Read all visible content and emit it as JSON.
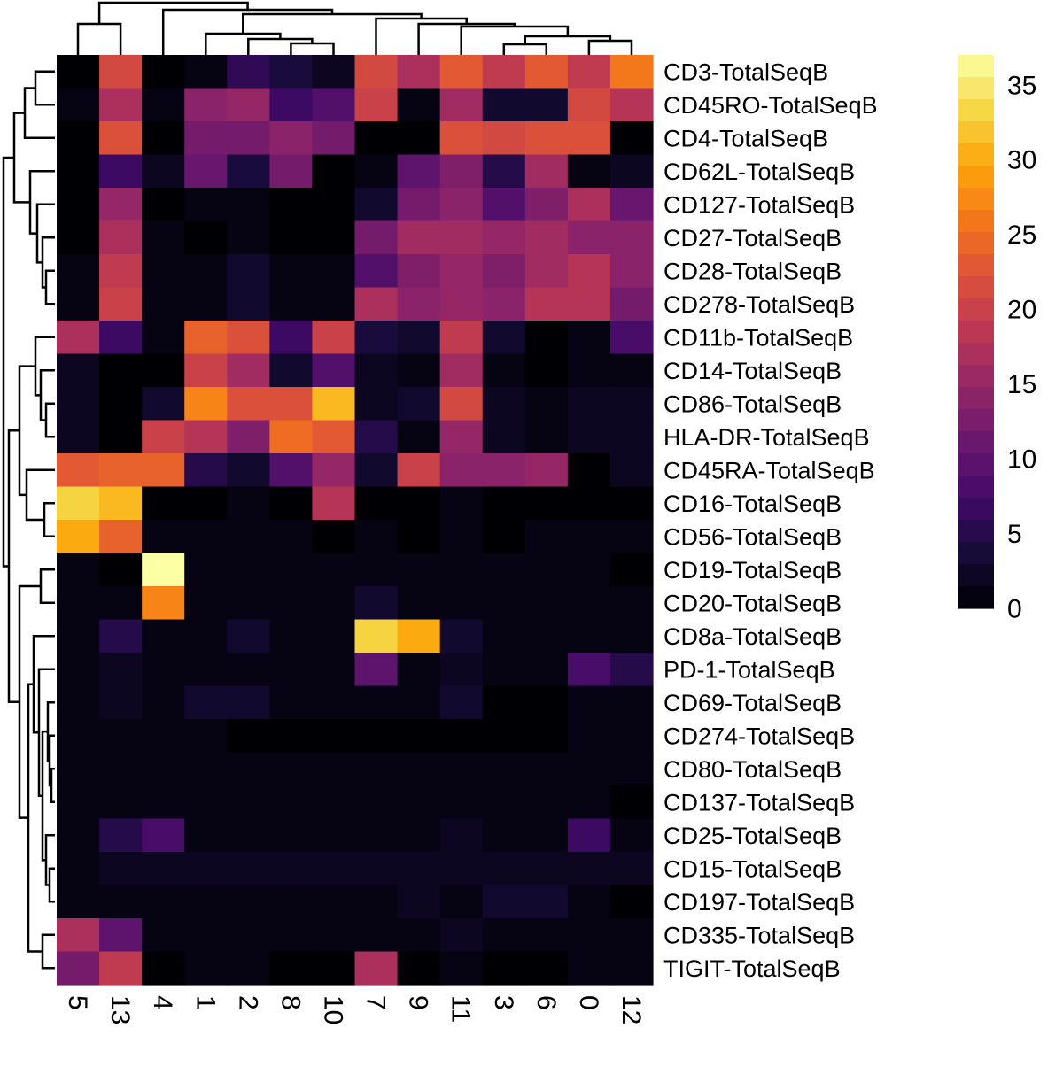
{
  "chart_data": {
    "type": "heatmap",
    "title": "",
    "xlabel": "",
    "ylabel": "",
    "columns": [
      "5",
      "13",
      "4",
      "1",
      "2",
      "8",
      "10",
      "7",
      "9",
      "11",
      "3",
      "6",
      "0",
      "12"
    ],
    "rows": [
      "CD3-TotalSeqB",
      "CD45RO-TotalSeqB",
      "CD4-TotalSeqB",
      "CD62L-TotalSeqB",
      "CD127-TotalSeqB",
      "CD27-TotalSeqB",
      "CD28-TotalSeqB",
      "CD278-TotalSeqB",
      "CD11b-TotalSeqB",
      "CD14-TotalSeqB",
      "CD86-TotalSeqB",
      "HLA-DR-TotalSeqB",
      "CD45RA-TotalSeqB",
      "CD16-TotalSeqB",
      "CD56-TotalSeqB",
      "CD19-TotalSeqB",
      "CD20-TotalSeqB",
      "CD8a-TotalSeqB",
      "PD-1-TotalSeqB",
      "CD69-TotalSeqB",
      "CD274-TotalSeqB",
      "CD80-TotalSeqB",
      "CD137-TotalSeqB",
      "CD25-TotalSeqB",
      "CD15-TotalSeqB",
      "CD197-TotalSeqB",
      "CD335-TotalSeqB",
      "TIGIT-TotalSeqB"
    ],
    "values": [
      [
        0,
        21,
        0,
        1,
        6,
        4,
        2,
        21,
        17,
        23,
        19,
        23,
        19,
        26
      ],
      [
        1,
        17,
        1,
        14,
        15,
        7,
        9,
        20,
        1,
        16,
        3,
        3,
        21,
        18
      ],
      [
        0,
        22,
        0,
        12,
        12,
        14,
        12,
        0,
        0,
        22,
        21,
        22,
        22,
        0
      ],
      [
        0,
        7,
        2,
        11,
        4,
        12,
        0,
        1,
        10,
        13,
        5,
        16,
        1,
        2
      ],
      [
        0,
        15,
        0,
        1,
        1,
        0,
        0,
        3,
        12,
        14,
        9,
        13,
        17,
        11
      ],
      [
        0,
        17,
        1,
        0,
        1,
        0,
        0,
        12,
        16,
        16,
        15,
        16,
        14,
        14
      ],
      [
        1,
        19,
        1,
        1,
        3,
        1,
        1,
        9,
        13,
        15,
        13,
        16,
        18,
        14
      ],
      [
        1,
        20,
        1,
        1,
        3,
        1,
        1,
        17,
        14,
        15,
        14,
        18,
        18,
        12
      ],
      [
        17,
        7,
        1,
        24,
        22,
        7,
        20,
        4,
        3,
        19,
        3,
        0,
        1,
        8
      ],
      [
        2,
        0,
        0,
        20,
        16,
        3,
        9,
        2,
        1,
        16,
        1,
        0,
        1,
        1
      ],
      [
        2,
        0,
        3,
        27,
        22,
        22,
        31,
        2,
        3,
        21,
        2,
        1,
        2,
        2
      ],
      [
        2,
        0,
        20,
        18,
        13,
        25,
        23,
        5,
        1,
        15,
        2,
        1,
        2,
        2
      ],
      [
        23,
        24,
        24,
        5,
        3,
        9,
        15,
        3,
        20,
        14,
        14,
        15,
        0,
        2
      ],
      [
        33,
        31,
        0,
        0,
        1,
        0,
        18,
        0,
        0,
        1,
        0,
        0,
        0,
        0
      ],
      [
        30,
        24,
        1,
        1,
        1,
        1,
        0,
        1,
        0,
        1,
        0,
        1,
        1,
        1
      ],
      [
        1,
        0,
        37,
        1,
        1,
        1,
        1,
        1,
        1,
        1,
        1,
        1,
        1,
        0
      ],
      [
        1,
        1,
        27,
        1,
        1,
        1,
        1,
        3,
        1,
        1,
        1,
        1,
        1,
        1
      ],
      [
        1,
        5,
        1,
        1,
        3,
        1,
        1,
        33,
        30,
        3,
        1,
        1,
        1,
        1
      ],
      [
        1,
        2,
        1,
        1,
        1,
        1,
        1,
        10,
        1,
        2,
        1,
        1,
        8,
        5
      ],
      [
        1,
        2,
        1,
        3,
        3,
        1,
        1,
        1,
        1,
        3,
        0,
        0,
        1,
        1
      ],
      [
        1,
        1,
        1,
        1,
        0,
        0,
        0,
        0,
        0,
        0,
        0,
        0,
        1,
        1
      ],
      [
        1,
        1,
        1,
        1,
        1,
        1,
        1,
        1,
        1,
        1,
        1,
        1,
        1,
        1
      ],
      [
        1,
        1,
        1,
        1,
        1,
        1,
        1,
        1,
        1,
        1,
        1,
        1,
        1,
        0
      ],
      [
        1,
        5,
        8,
        1,
        1,
        1,
        1,
        1,
        1,
        2,
        1,
        1,
        7,
        1
      ],
      [
        1,
        2,
        2,
        2,
        2,
        2,
        2,
        2,
        2,
        2,
        2,
        2,
        2,
        2
      ],
      [
        1,
        1,
        1,
        1,
        1,
        1,
        1,
        1,
        2,
        1,
        3,
        3,
        1,
        0
      ],
      [
        17,
        10,
        1,
        1,
        1,
        1,
        1,
        1,
        1,
        2,
        1,
        1,
        1,
        1
      ],
      [
        12,
        19,
        0,
        1,
        1,
        0,
        0,
        17,
        0,
        1,
        0,
        0,
        1,
        1
      ]
    ],
    "colorscale": "inferno",
    "colorbar": {
      "range": [
        0,
        37
      ],
      "ticks": [
        0,
        5,
        10,
        15,
        20,
        25,
        30,
        35
      ],
      "placement": "right"
    },
    "dendrograms": [
      "top",
      "left"
    ]
  }
}
